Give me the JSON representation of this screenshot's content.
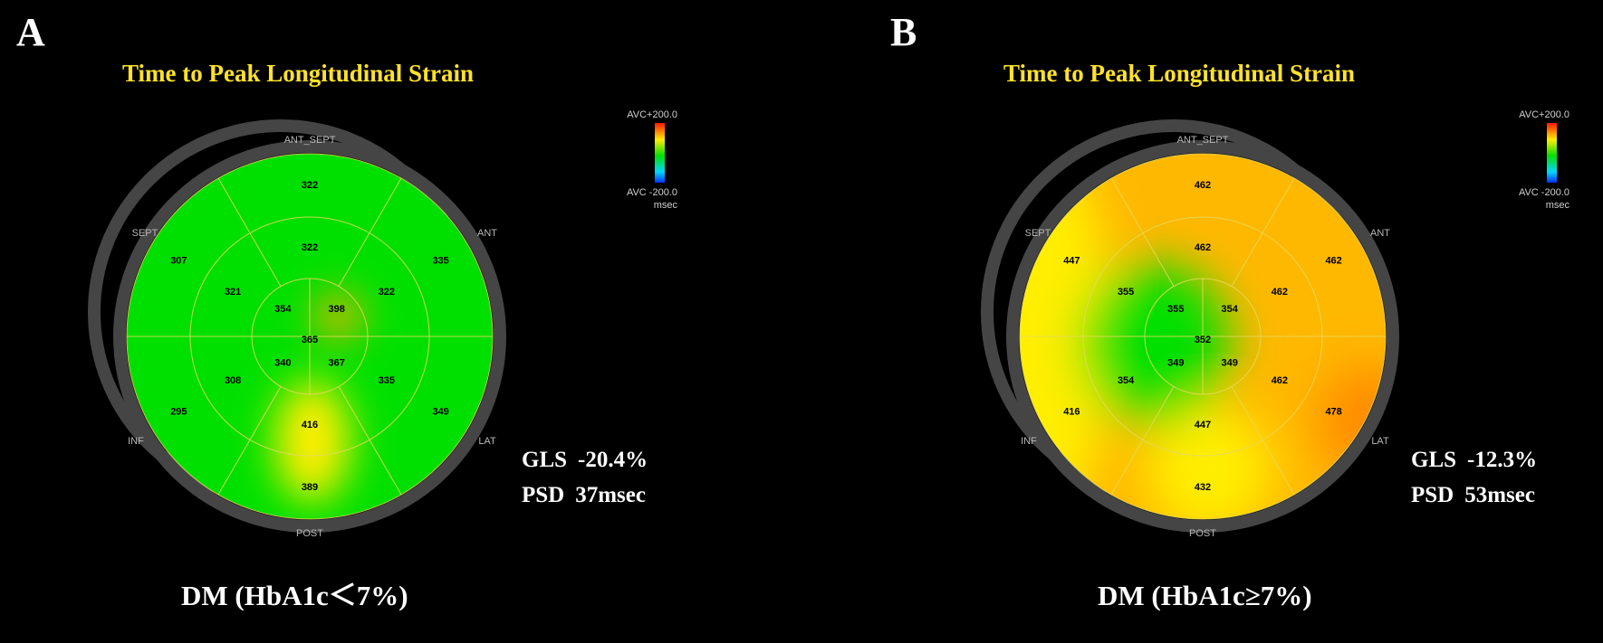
{
  "panels": [
    {
      "id": "A",
      "letter": "A",
      "title": "Time to Peak Longitudinal Strain",
      "colorbar": {
        "top_label": "AVC+200.0",
        "bottom_label": "AVC -200.0",
        "unit": "msec"
      },
      "wall_labels": {
        "top": "ANT_SEPT",
        "upper_left": "SEPT",
        "upper_right": "ANT",
        "lower_left": "INF",
        "lower_right": "LAT",
        "bottom": "POST"
      },
      "segments": {
        "basal": [
          "322",
          "335",
          "349",
          "389",
          "295",
          "307"
        ],
        "mid": [
          "322",
          "322",
          "335",
          "416",
          "308",
          "321"
        ],
        "apical": [
          "398",
          "367",
          "340",
          "354"
        ],
        "apex": "365"
      },
      "stats": {
        "gls_label": "GLS",
        "gls_value": "-20.4%",
        "psd_label": "PSD",
        "psd_value": "37msec"
      },
      "caption": "DM (HbA1c＜7%)",
      "colors": {
        "base": "#00e000",
        "accent": "#ffee00"
      }
    },
    {
      "id": "B",
      "letter": "B",
      "title": "Time to Peak Longitudinal Strain",
      "colorbar": {
        "top_label": "AVC+200.0",
        "bottom_label": "AVC -200.0",
        "unit": "msec"
      },
      "wall_labels": {
        "top": "ANT_SEPT",
        "upper_left": "SEPT",
        "upper_right": "ANT",
        "lower_left": "INF",
        "lower_right": "LAT",
        "bottom": "POST"
      },
      "segments": {
        "basal": [
          "462",
          "462",
          "478",
          "432",
          "416",
          "447"
        ],
        "mid": [
          "462",
          "462",
          "462",
          "447",
          "354",
          "355"
        ],
        "apical": [
          "354",
          "349",
          "349",
          "355"
        ],
        "apex": "352"
      },
      "stats": {
        "gls_label": "GLS",
        "gls_value": "-12.3%",
        "psd_label": "PSD",
        "psd_value": "53msec"
      },
      "caption": "DM (HbA1c≥7%)",
      "colors": {
        "base": "#ffb800",
        "accent": "#00e000"
      }
    }
  ]
}
